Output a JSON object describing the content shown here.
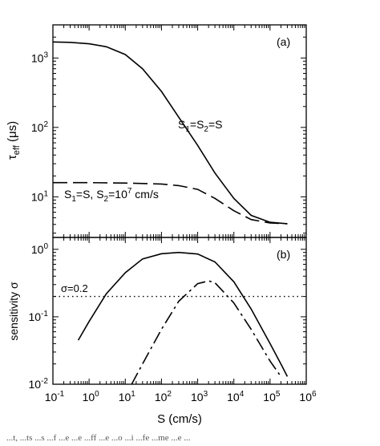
{
  "chart_data": [
    {
      "type": "line",
      "panel_label": "(a)",
      "ylabel_main": "τ",
      "ylabel_sub": "eff",
      "ylabel_unit": " (μs)",
      "xscale": "log",
      "yscale": "log",
      "xlim": [
        0.1,
        1000000
      ],
      "ylim": [
        2.6,
        3000
      ],
      "y_ticks": [
        {
          "base": "10",
          "exp": "1",
          "value": 10
        },
        {
          "base": "10",
          "exp": "2",
          "value": 100
        },
        {
          "base": "10",
          "exp": "3",
          "value": 1000
        }
      ],
      "grid": false,
      "series": [
        {
          "style": "solid",
          "label_parts": [
            {
              "t": "S"
            },
            {
              "t": "1",
              "sub": true
            },
            {
              "t": "=S"
            },
            {
              "t": "2",
              "sub": true
            },
            {
              "t": "=S"
            }
          ],
          "points": [
            [
              0.1,
              1700
            ],
            [
              0.3,
              1680
            ],
            [
              1,
              1600
            ],
            [
              3,
              1450
            ],
            [
              10,
              1120
            ],
            [
              30,
              700
            ],
            [
              100,
              330
            ],
            [
              300,
              140
            ],
            [
              1000,
              55
            ],
            [
              3000,
              22
            ],
            [
              10000,
              9.5
            ],
            [
              30000,
              5.4
            ],
            [
              100000,
              4.3
            ],
            [
              300000,
              4.1
            ]
          ]
        },
        {
          "style": "dashed",
          "label_parts": [
            {
              "t": "S"
            },
            {
              "t": "1",
              "sub": true
            },
            {
              "t": "=S, S"
            },
            {
              "t": "2",
              "sub": true
            },
            {
              "t": "=10"
            },
            {
              "t": "7",
              "sup": true
            },
            {
              "t": " cm/s"
            }
          ],
          "points": [
            [
              0.1,
              16
            ],
            [
              1,
              16
            ],
            [
              10,
              15.8
            ],
            [
              100,
              15.3
            ],
            [
              300,
              14.5
            ],
            [
              1000,
              12.8
            ],
            [
              3000,
              9.5
            ],
            [
              10000,
              6.3
            ],
            [
              30000,
              4.7
            ],
            [
              100000,
              4.2
            ],
            [
              300000,
              4.1
            ]
          ]
        }
      ]
    },
    {
      "type": "line",
      "panel_label": "(b)",
      "ylabel": "sensitivity σ",
      "xlabel": "S (cm/s)",
      "xscale": "log",
      "yscale": "log",
      "xlim": [
        0.1,
        1000000
      ],
      "ylim": [
        0.01,
        1.5
      ],
      "x_ticks": [
        {
          "base": "10",
          "exp": "-1",
          "value": 0.1
        },
        {
          "base": "10",
          "exp": "0",
          "value": 1
        },
        {
          "base": "10",
          "exp": "1",
          "value": 10
        },
        {
          "base": "10",
          "exp": "2",
          "value": 100
        },
        {
          "base": "10",
          "exp": "3",
          "value": 1000
        },
        {
          "base": "10",
          "exp": "4",
          "value": 10000
        },
        {
          "base": "10",
          "exp": "5",
          "value": 100000
        },
        {
          "base": "10",
          "exp": "6",
          "value": 1000000
        }
      ],
      "y_ticks": [
        {
          "base": "10",
          "exp": "-2",
          "value": 0.01
        },
        {
          "base": "10",
          "exp": "-1",
          "value": 0.1
        },
        {
          "base": "10",
          "exp": "0",
          "value": 1
        }
      ],
      "grid": false,
      "series": [
        {
          "style": "solid",
          "points": [
            [
              0.5,
              0.045
            ],
            [
              1,
              0.085
            ],
            [
              3,
              0.22
            ],
            [
              10,
              0.45
            ],
            [
              30,
              0.72
            ],
            [
              100,
              0.86
            ],
            [
              300,
              0.9
            ],
            [
              1000,
              0.85
            ],
            [
              3000,
              0.65
            ],
            [
              10000,
              0.33
            ],
            [
              30000,
              0.13
            ],
            [
              100000,
              0.04
            ],
            [
              200000,
              0.02
            ],
            [
              300000,
              0.013
            ]
          ]
        },
        {
          "style": "dashdot",
          "points": [
            [
              15,
              0.01
            ],
            [
              30,
              0.02
            ],
            [
              100,
              0.065
            ],
            [
              300,
              0.17
            ],
            [
              1000,
              0.31
            ],
            [
              2000,
              0.34
            ],
            [
              3000,
              0.32
            ],
            [
              10000,
              0.16
            ],
            [
              30000,
              0.065
            ],
            [
              100000,
              0.022
            ],
            [
              200000,
              0.013
            ]
          ]
        }
      ],
      "reference_line": {
        "label": "σ=0.2",
        "y": 0.2,
        "style": "dotted"
      }
    }
  ],
  "caption_fragment": "...t, ...ts ...s ...f ...e ...e ...ff ...e ...o ...i ...fe ...me ...e ..."
}
